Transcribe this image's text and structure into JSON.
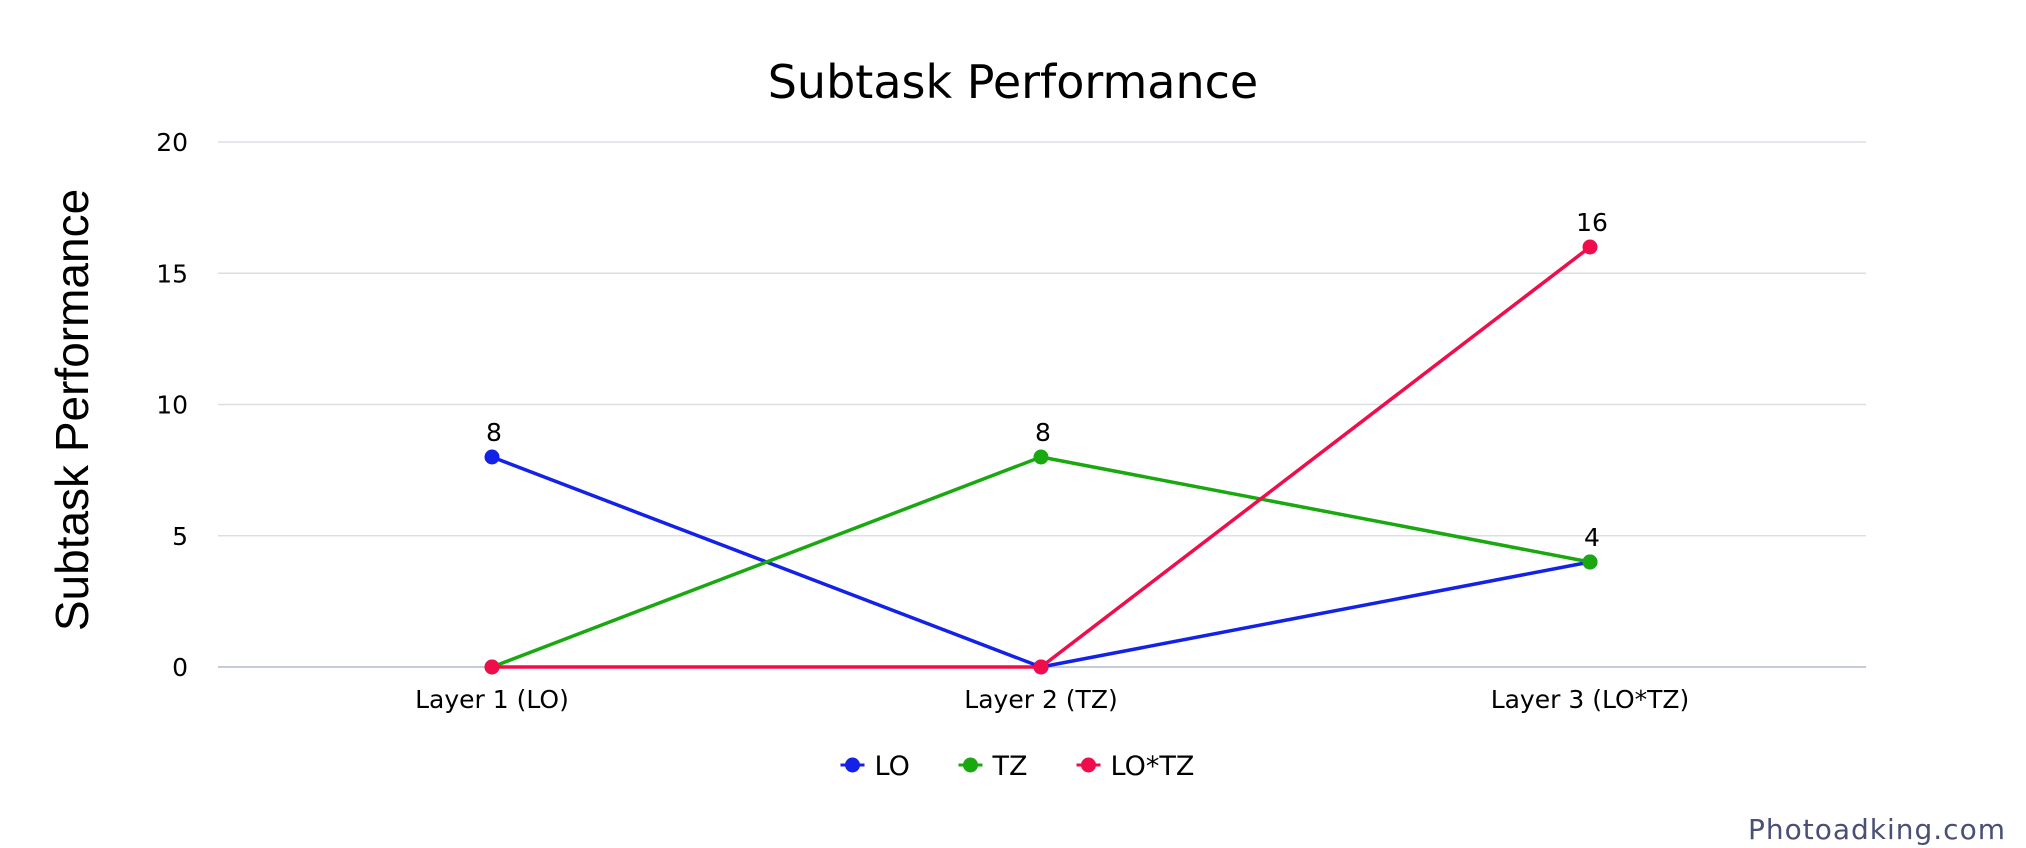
{
  "chart_data": {
    "type": "line",
    "title": "Subtask Performance",
    "xlabel": "",
    "ylabel": "Subtask Performance",
    "categories": [
      "Layer 1 (LO)",
      "Layer 2 (TZ)",
      "Layer 3 (LO*TZ)"
    ],
    "ylim": [
      0,
      20
    ],
    "yticks": [
      0,
      5,
      10,
      15,
      20
    ],
    "grid": true,
    "legend_position": "bottom-center",
    "series": [
      {
        "name": "LO",
        "color": "#1322e6",
        "values": [
          8,
          0,
          4
        ]
      },
      {
        "name": "TZ",
        "color": "#19a80f",
        "values": [
          0,
          8,
          4
        ]
      },
      {
        "name": "LO*TZ",
        "color": "#ef0e4b",
        "values": [
          0,
          0,
          16
        ]
      }
    ],
    "data_labels": [
      {
        "category_index": 0,
        "value": 8,
        "text": "8"
      },
      {
        "category_index": 1,
        "value": 8,
        "text": "8"
      },
      {
        "category_index": 2,
        "value": 16,
        "text": "16"
      },
      {
        "category_index": 2,
        "value": 4,
        "text": "4"
      }
    ]
  },
  "watermark": "Photoadking.com"
}
